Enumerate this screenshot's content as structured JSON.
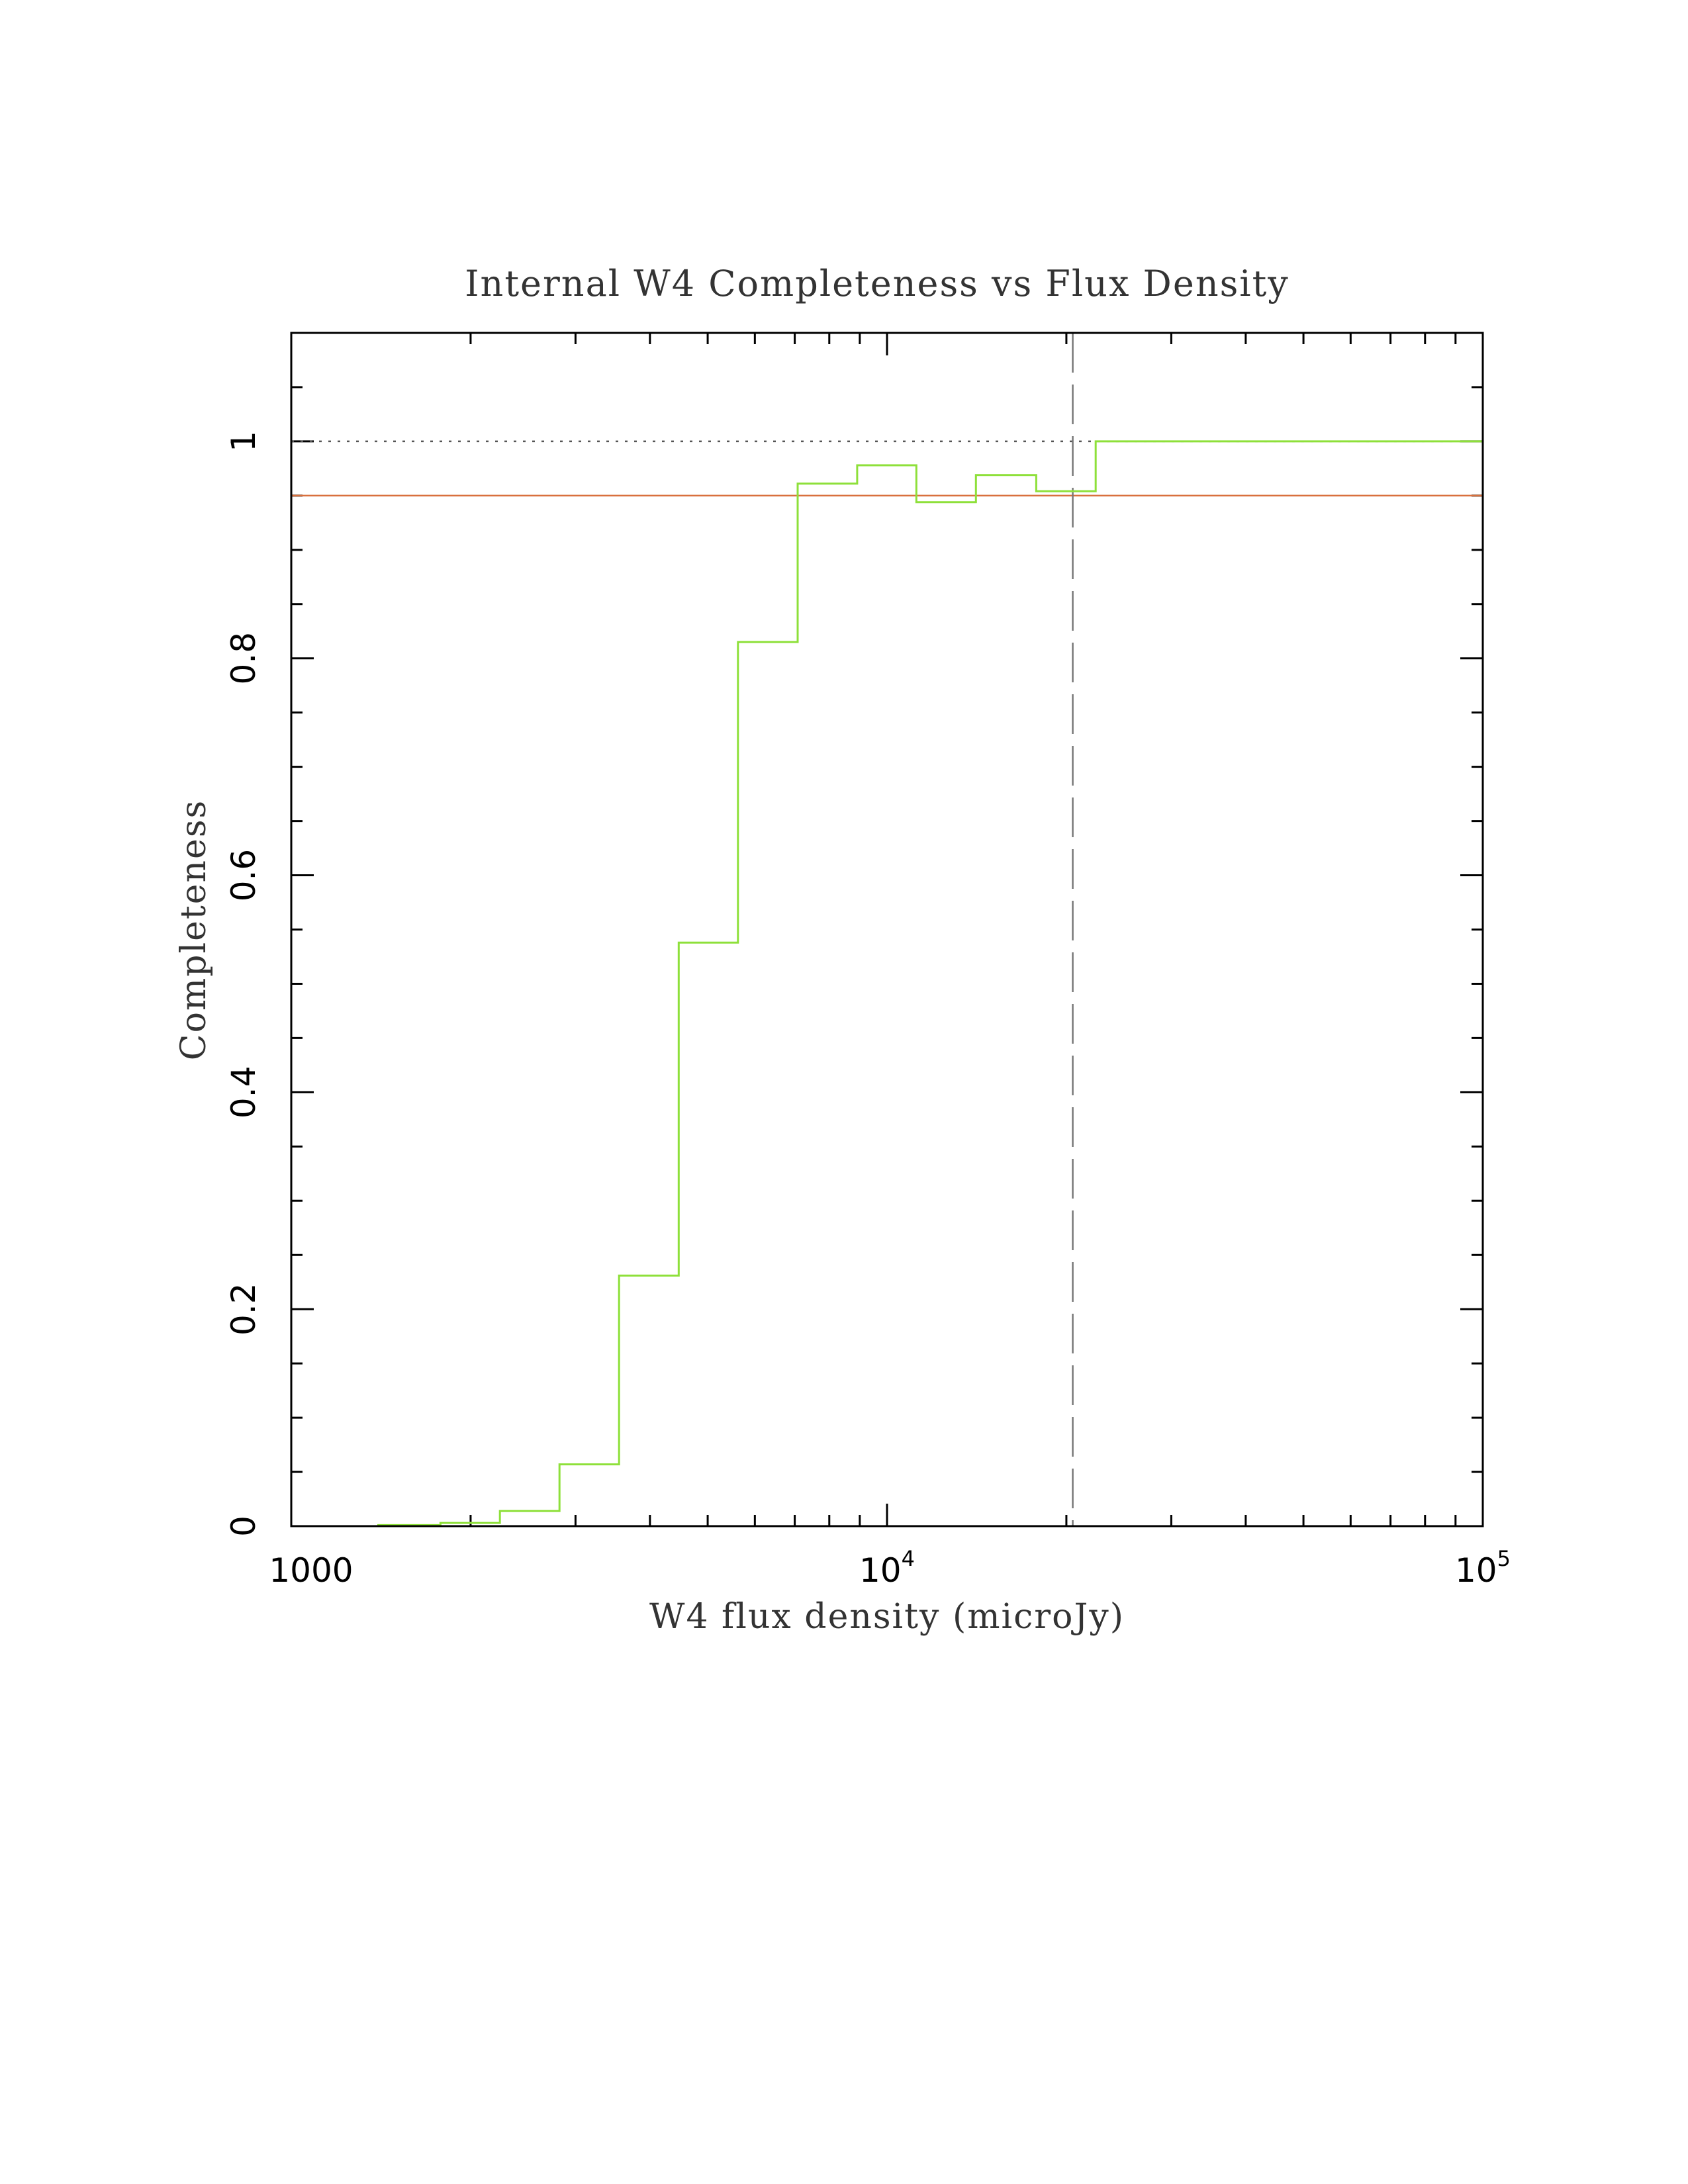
{
  "chart_data": {
    "type": "line",
    "title": "Internal W4 Completeness vs Flux Density",
    "xlabel": "W4 flux density (microJy)",
    "ylabel": "Completeness",
    "xscale": "log",
    "xlim": [
      1000,
      100000
    ],
    "ylim": [
      0,
      1.1
    ],
    "x_tick_labels": [
      {
        "value": 1000,
        "base": "1000",
        "exp": ""
      },
      {
        "value": 10000,
        "base": "10",
        "exp": "4"
      },
      {
        "value": 100000,
        "base": "10",
        "exp": "5"
      }
    ],
    "y_tick_labels": [
      "0",
      "0.2",
      "0.4",
      "0.6",
      "0.8",
      "1"
    ],
    "y_tick_values": [
      0,
      0.2,
      0.4,
      0.6,
      0.8,
      1
    ],
    "series": [
      {
        "style": "step",
        "color": "#8ee03a",
        "bin_edges": [
          1000,
          1400,
          1780,
          2240,
          2820,
          3550,
          4470,
          5620,
          7080,
          8910,
          11200,
          14100,
          17800,
          22400,
          100000
        ],
        "values": [
          0.0,
          0.001,
          0.003,
          0.014,
          0.057,
          0.231,
          0.538,
          0.815,
          0.961,
          0.978,
          0.944,
          0.969,
          0.954,
          1.0
        ]
      }
    ],
    "reference_lines": [
      {
        "orientation": "horizontal",
        "y": 1.0,
        "style": "dotted",
        "color": "#555555"
      },
      {
        "orientation": "horizontal",
        "y": 0.95,
        "style": "solid",
        "color": "#d9703e"
      },
      {
        "orientation": "vertical",
        "x": 20500,
        "style": "dashed",
        "color": "#777777"
      }
    ],
    "grid": false,
    "legend": "none"
  }
}
